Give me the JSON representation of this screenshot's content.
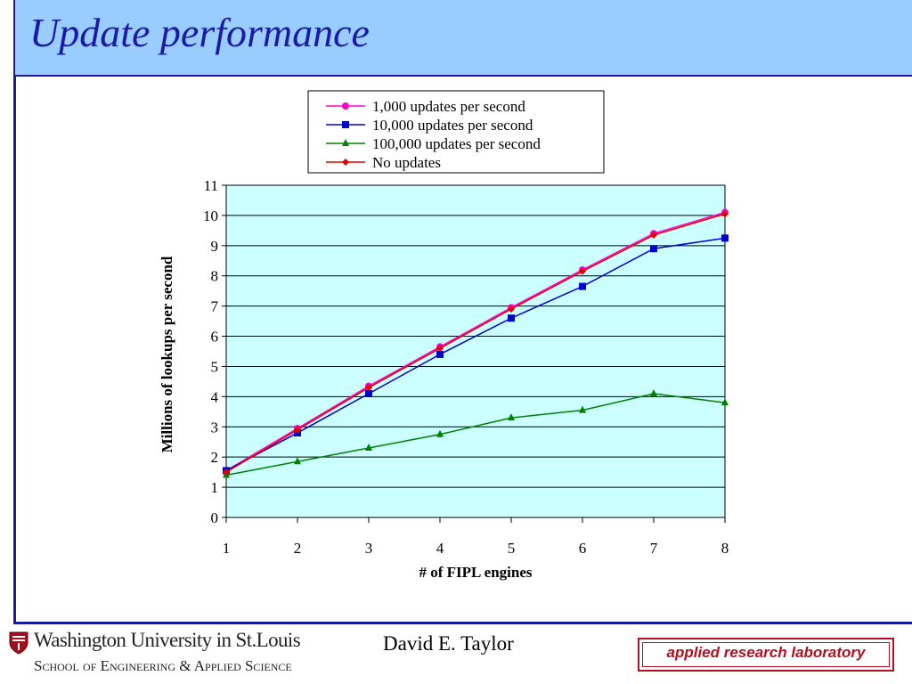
{
  "slide": {
    "title": "Update performance",
    "author": "David E. Taylor",
    "institution": "Washington University in St.Louis",
    "school": "School of Engineering & Applied Science",
    "lab_badge": "applied research laboratory"
  },
  "colors": {
    "title_bar_bg": "#99ccff",
    "title_text": "#1a1aa6",
    "plot_bg": "#ccffff",
    "lab_badge": "#b01020"
  },
  "chart_data": {
    "type": "line",
    "xlabel": "# of FIPL engines",
    "ylabel": "Millions of lookups per second",
    "x": [
      1,
      2,
      3,
      4,
      5,
      6,
      7,
      8
    ],
    "xlim": [
      1,
      8
    ],
    "ylim": [
      0,
      11
    ],
    "yticks": [
      0,
      1,
      2,
      3,
      4,
      5,
      6,
      7,
      8,
      9,
      10,
      11
    ],
    "grid": true,
    "legend_position": "top",
    "series": [
      {
        "name": "1,000 updates per second",
        "color": "#ff00cc",
        "marker": "circle",
        "values": [
          1.55,
          2.95,
          4.35,
          5.65,
          6.95,
          8.2,
          9.4,
          10.1
        ]
      },
      {
        "name": "10,000 updates per second",
        "color": "#0000cc",
        "marker": "square",
        "values": [
          1.55,
          2.8,
          4.1,
          5.4,
          6.6,
          7.65,
          8.9,
          9.25
        ]
      },
      {
        "name": "100,000 updates per second",
        "color": "#008000",
        "marker": "triangle",
        "values": [
          1.4,
          1.85,
          2.3,
          2.75,
          3.3,
          3.55,
          4.1,
          3.8
        ]
      },
      {
        "name": "No updates",
        "color": "#e00000",
        "marker": "diamond",
        "values": [
          1.5,
          2.9,
          4.3,
          5.6,
          6.9,
          8.15,
          9.35,
          10.05
        ]
      }
    ]
  }
}
